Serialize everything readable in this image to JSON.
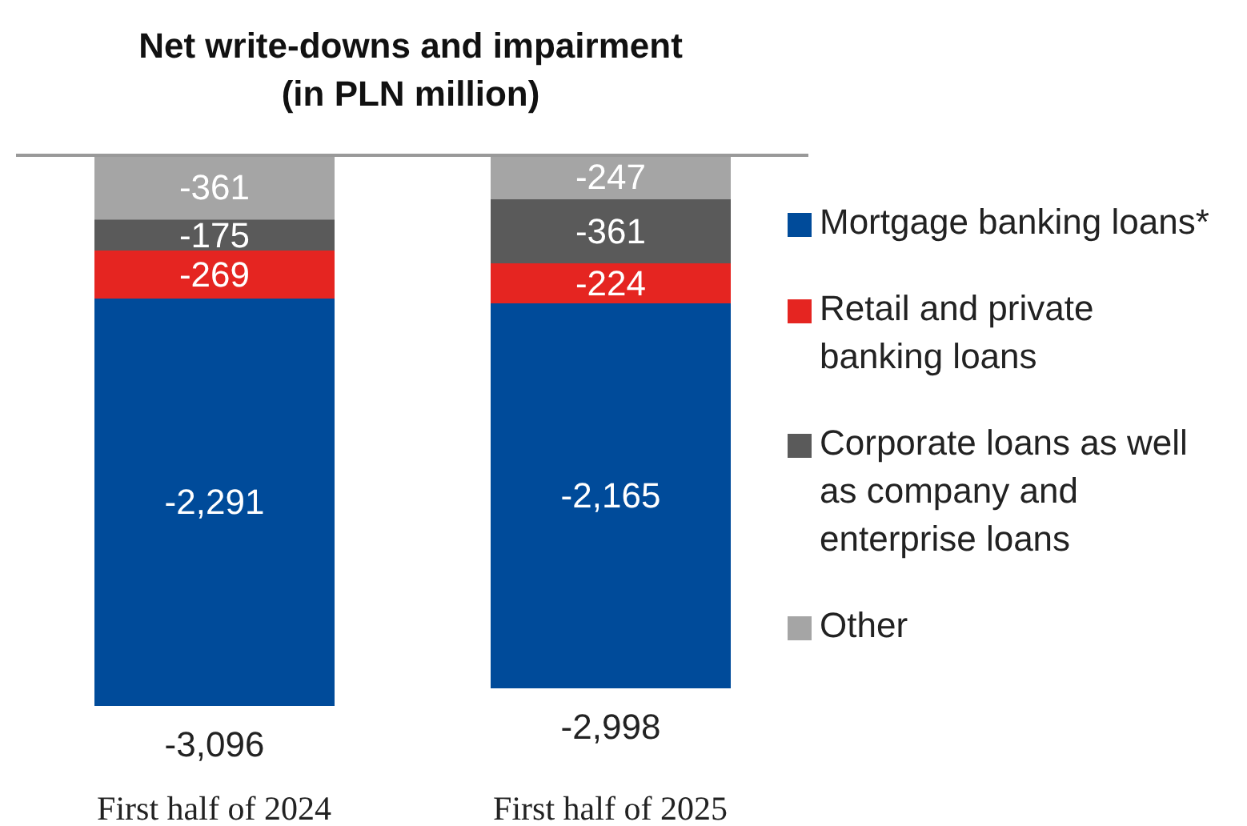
{
  "chart_data": {
    "type": "bar",
    "title": "Net write-downs and impairment",
    "subtitle": "(in PLN million)",
    "categories": [
      "First half of 2024",
      "First half of 2025"
    ],
    "stacked": true,
    "legend": "right",
    "series": [
      {
        "name": "Other",
        "color": "#a5a5a5",
        "values": [
          -361,
          -247
        ],
        "value_labels": [
          "-361",
          "-247"
        ]
      },
      {
        "name": "Corporate loans as well as company and enterprise loans",
        "color": "#5a5a5a",
        "values": [
          -175,
          -361
        ],
        "value_labels": [
          "-175",
          "-361"
        ]
      },
      {
        "name": "Retail and private banking loans",
        "color": "#e52521",
        "values": [
          -269,
          -224
        ],
        "value_labels": [
          "-269",
          "-224"
        ]
      },
      {
        "name": "Mortgage banking loans*",
        "color": "#004b9a",
        "values": [
          -2291,
          -2165
        ],
        "value_labels": [
          "-2,291",
          "-2,165"
        ]
      }
    ],
    "totals": [
      "-3,096",
      "-2,998"
    ]
  }
}
